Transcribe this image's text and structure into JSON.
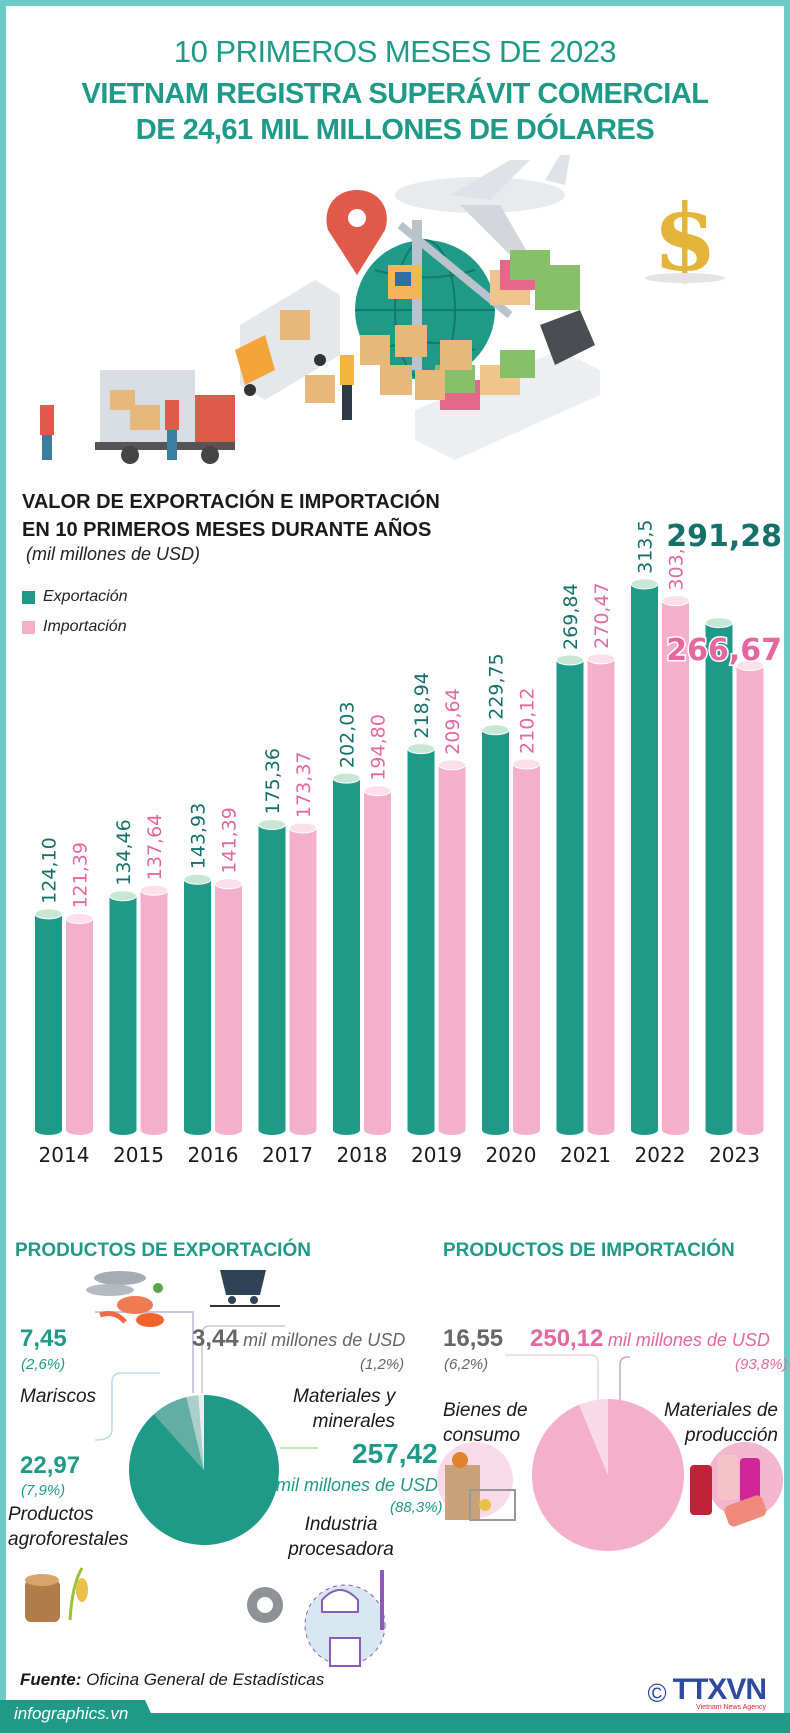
{
  "header": {
    "line1": "10 PRIMEROS MESES DE 2023",
    "line2": "VIETNAM REGISTRA SUPERÁVIT COMERCIAL",
    "line3": "DE 24,61 MIL MILLONES DE DÓLARES"
  },
  "illustration": {
    "icons": [
      "delivery-truck-icon",
      "location-pin-icon",
      "airplane-icon",
      "globe-icon",
      "crane-icon",
      "cargo-ship-icon",
      "boxes-icon",
      "dollar-sign-icon"
    ]
  },
  "colors": {
    "export": "#1f9a88",
    "export_label": "#16706a",
    "import": "#f4afcb",
    "import_label": "#e4679f",
    "frame": "#6ccbc4"
  },
  "chart_data": {
    "type": "bar",
    "title": "VALOR DE EXPORTACIÓN E IMPORTACIÓN EN 10 PRIMEROS MESES DURANTE AÑOS",
    "subtitle": "(mil millones de USD)",
    "xlabel": "",
    "ylabel": "",
    "categories": [
      "2014",
      "2015",
      "2016",
      "2017",
      "2018",
      "2019",
      "2020",
      "2021",
      "2022",
      "2023"
    ],
    "series": [
      {
        "name": "Exportación",
        "values": [
          124.1,
          134.46,
          143.93,
          175.36,
          202.03,
          218.94,
          229.75,
          269.84,
          313.5,
          291.28
        ],
        "labels": [
          "124,10",
          "134,46",
          "143,93",
          "175,36",
          "202,03",
          "218,94",
          "229,75",
          "269,84",
          "313,5",
          "291,28"
        ]
      },
      {
        "name": "Importación",
        "values": [
          121.39,
          137.64,
          141.39,
          173.37,
          194.8,
          209.64,
          210.12,
          270.47,
          303.9,
          266.67
        ],
        "labels": [
          "121,39",
          "137,64",
          "141,39",
          "173,37",
          "194,80",
          "209,64",
          "210,12",
          "270,47",
          "303,9",
          "266,67"
        ]
      }
    ],
    "ylim": [
      0,
      330
    ],
    "grid": false,
    "legend": "top-left"
  },
  "legend": {
    "items": [
      {
        "label": "Exportación"
      },
      {
        "label": "Importación"
      }
    ]
  },
  "export_products": {
    "title": "PRODUCTOS DE EXPORTACIÓN",
    "unit": "mil millones de USD",
    "items": [
      {
        "category": "Industria procesadora",
        "value": 257.42,
        "value_label": "257,42",
        "pct_label": "(88,3%)",
        "unit": "mil millones de USD",
        "icon": "industry-icon"
      },
      {
        "category": "Productos agroforestales",
        "value": 22.97,
        "value_label": "22,97",
        "pct_label": "(7,9%)",
        "icon": "wood-rice-icon"
      },
      {
        "category": "Mariscos",
        "value": 7.45,
        "value_label": "7,45",
        "pct_label": "(2,6%)",
        "icon": "seafood-icon"
      },
      {
        "category": "Materiales y minerales",
        "value": 3.44,
        "value_label": "3,44",
        "pct_label": "(1,2%)",
        "unit": "mil millones de USD",
        "icon": "mine-cart-icon"
      }
    ],
    "cat_line1": {
      "agro": "Productos",
      "mat": "Materiales y",
      "ind": "Industria"
    },
    "cat_line2": {
      "agro": "agroforestales",
      "mat": "minerales",
      "ind": "procesadora"
    }
  },
  "import_products": {
    "title": "PRODUCTOS DE IMPORTACIÓN",
    "items": [
      {
        "category": "Materiales de producción",
        "value": 250.12,
        "value_label": "250,12",
        "pct_label": "(93,8%)",
        "unit": "mil millones de USD",
        "icon": "thread-spools-icon"
      },
      {
        "category": "Bienes de consumo",
        "value": 16.55,
        "value_label": "16,55",
        "pct_label": "(6,2%)",
        "icon": "grocery-basket-icon"
      }
    ],
    "cat_line1": {
      "cons": "Bienes de",
      "prod": "Materiales de"
    },
    "cat_line2": {
      "cons": "consumo",
      "prod": "producción"
    }
  },
  "footer": {
    "source_label": "Fuente:",
    "source_text": "Oficina General de Estadísticas",
    "site": "infographics.vn",
    "copyright": "©",
    "agency": "TTXVN",
    "agency_sub": "Vietnam News Agency"
  }
}
